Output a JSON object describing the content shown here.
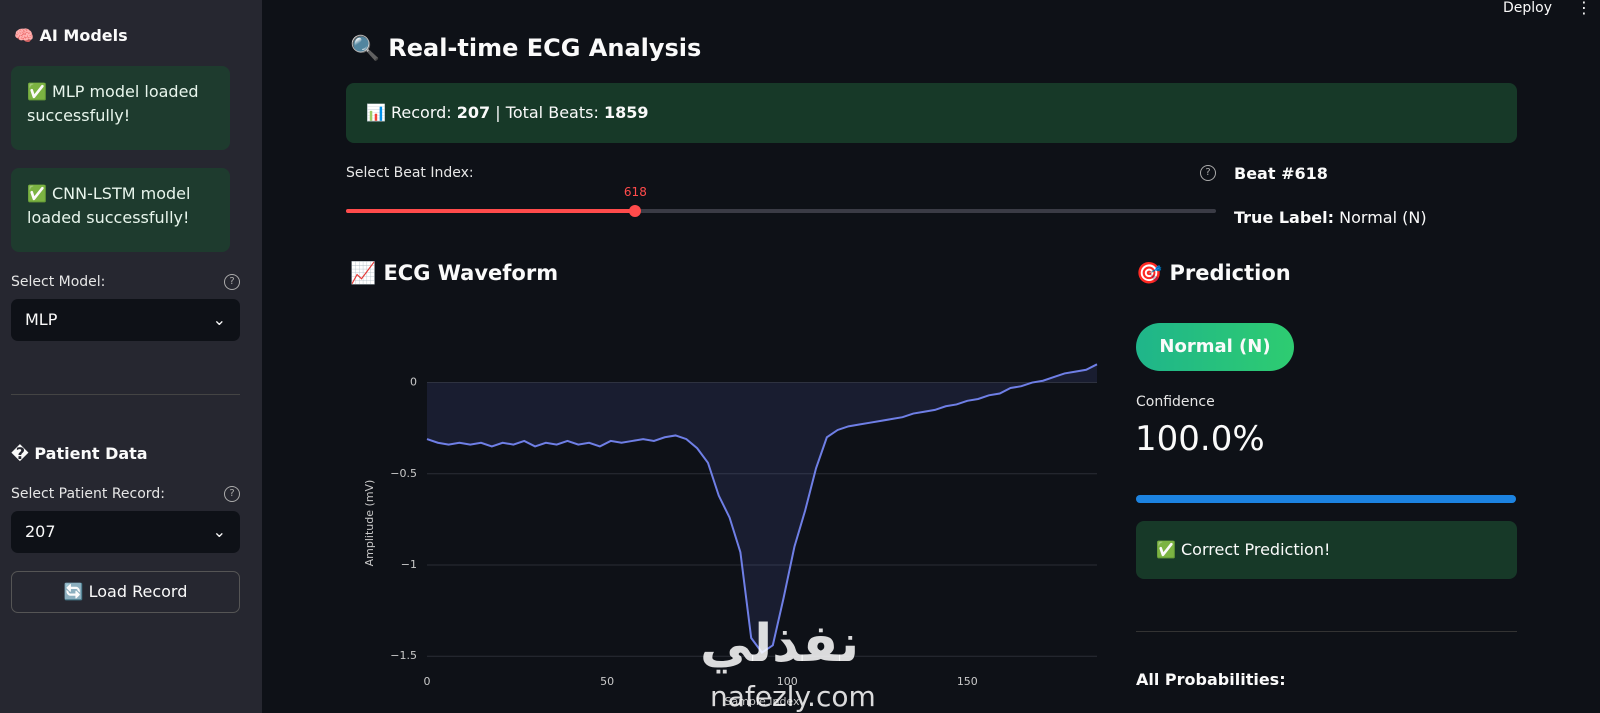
{
  "toolbar": {
    "deploy": "Deploy"
  },
  "sidebar": {
    "title": "🧠 AI Models",
    "alerts": [
      "✅ MLP model loaded successfully!",
      "✅ CNN-LSTM model loaded successfully!"
    ],
    "model_select": {
      "label": "Select Model:",
      "value": "MLP"
    },
    "patient_title": "� Patient Data",
    "record_select": {
      "label": "Select Patient Record:",
      "value": "207"
    },
    "load_button": "🔄 Load Record"
  },
  "main": {
    "title": "🔍 Real-time ECG Analysis",
    "info": {
      "record_label": "📊 Record:",
      "record": "207",
      "beats_label": "| Total Beats:",
      "beats": "1859"
    },
    "slider": {
      "label": "Select Beat Index:",
      "value": 618,
      "range": [
        0,
        1858
      ]
    },
    "beat": {
      "title": "Beat #618",
      "true_label_label": "True Label:",
      "true_label": "Normal (N)"
    },
    "waveform_title": "📈 ECG Waveform",
    "prediction": {
      "title": "🎯 Prediction",
      "badge": "Normal (N)",
      "confidence_label": "Confidence",
      "confidence": {
        "value": 100,
        "label": "100.0%"
      },
      "confidence_range": [
        0,
        100
      ],
      "result": "✅ Correct Prediction!",
      "probabilities_title": "All Probabilities:"
    },
    "watermark": {
      "arabic": "نفذلي",
      "latin": "nafezly.com"
    }
  },
  "chart_data": {
    "type": "area",
    "color": "#6f7fe6",
    "x_label": "Sample Index",
    "y_label": "Amplitude (mV)",
    "x": [
      0,
      3,
      6,
      9,
      12,
      15,
      18,
      21,
      24,
      27,
      30,
      33,
      36,
      39,
      42,
      45,
      48,
      51,
      54,
      57,
      60,
      63,
      66,
      69,
      72,
      75,
      78,
      81,
      84,
      87,
      90,
      93,
      96,
      99,
      102,
      105,
      108,
      111,
      114,
      117,
      120,
      123,
      126,
      129,
      132,
      135,
      138,
      141,
      144,
      147,
      150,
      153,
      156,
      159,
      162,
      165,
      168,
      171,
      174,
      177,
      180,
      183,
      186
    ],
    "values": [
      -0.31,
      -0.33,
      -0.34,
      -0.33,
      -0.34,
      -0.33,
      -0.35,
      -0.33,
      -0.34,
      -0.32,
      -0.35,
      -0.33,
      -0.34,
      -0.32,
      -0.34,
      -0.33,
      -0.35,
      -0.32,
      -0.33,
      -0.32,
      -0.31,
      -0.32,
      -0.3,
      -0.29,
      -0.31,
      -0.36,
      -0.44,
      -0.62,
      -0.74,
      -0.93,
      -1.4,
      -1.48,
      -1.44,
      -1.18,
      -0.9,
      -0.7,
      -0.47,
      -0.3,
      -0.26,
      -0.24,
      -0.23,
      -0.22,
      -0.21,
      -0.2,
      -0.19,
      -0.17,
      -0.16,
      -0.15,
      -0.13,
      -0.12,
      -0.1,
      -0.09,
      -0.07,
      -0.06,
      -0.03,
      -0.02,
      0,
      0.01,
      0.03,
      0.05,
      0.06,
      0.07,
      0.1
    ],
    "xlim": [
      0,
      186
    ],
    "ylim": [
      -1.57,
      0.14
    ],
    "xticks": [
      0,
      50,
      100,
      150
    ],
    "yticks": [
      0,
      {
        "value": -0.5,
        "label": "−0.5"
      },
      {
        "value": -1,
        "label": "−1"
      },
      {
        "value": -1.5,
        "label": "−1.5"
      }
    ],
    "grid": true
  }
}
